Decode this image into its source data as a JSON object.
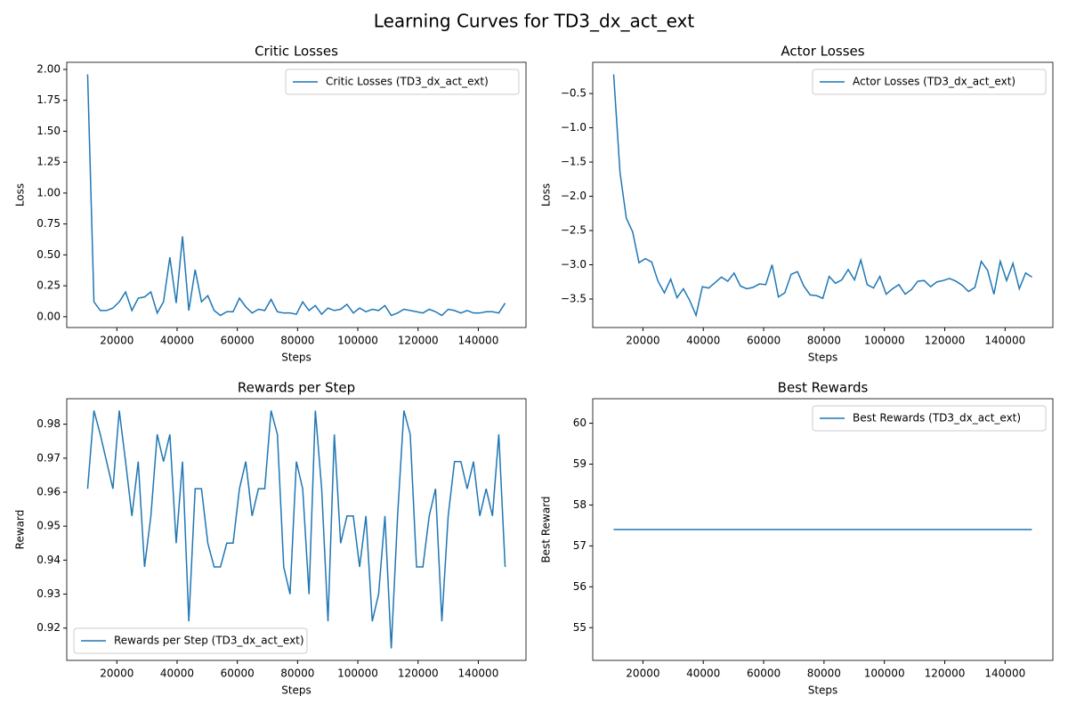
{
  "title": "Learning Curves for TD3_dx_act_ext",
  "chart_data": [
    {
      "type": "line",
      "title": "Critic Losses",
      "x_label": "Steps",
      "y_label": "Loss",
      "legend": "upper right",
      "x": [
        10300,
        12400,
        14500,
        16600,
        18700,
        20800,
        22900,
        25000,
        27100,
        29200,
        31300,
        33400,
        35500,
        37600,
        39700,
        41800,
        43900,
        46000,
        48100,
        50200,
        52300,
        54400,
        56500,
        58600,
        60700,
        62800,
        64900,
        67000,
        69100,
        71200,
        73300,
        75400,
        77500,
        79600,
        81700,
        83800,
        85900,
        88000,
        90100,
        92200,
        94300,
        96400,
        98500,
        100600,
        102700,
        104800,
        106900,
        109000,
        111100,
        113200,
        115300,
        117400,
        119500,
        121600,
        123700,
        125800,
        127900,
        130000,
        132100,
        134200,
        136300,
        138400,
        140500,
        142600,
        144700,
        146800,
        148900
      ],
      "series": [
        {
          "name": "Critic Losses (TD3_dx_act_ext)",
          "color": "#1f77b4",
          "values": [
            1.96,
            0.12,
            0.05,
            0.05,
            0.07,
            0.12,
            0.2,
            0.05,
            0.15,
            0.16,
            0.2,
            0.03,
            0.12,
            0.48,
            0.11,
            0.65,
            0.05,
            0.38,
            0.12,
            0.17,
            0.05,
            0.01,
            0.04,
            0.04,
            0.15,
            0.08,
            0.03,
            0.06,
            0.05,
            0.14,
            0.04,
            0.03,
            0.03,
            0.02,
            0.12,
            0.05,
            0.09,
            0.02,
            0.07,
            0.05,
            0.06,
            0.1,
            0.03,
            0.07,
            0.04,
            0.06,
            0.05,
            0.09,
            0.01,
            0.03,
            0.06,
            0.05,
            0.04,
            0.03,
            0.06,
            0.04,
            0.01,
            0.06,
            0.05,
            0.03,
            0.05,
            0.03,
            0.03,
            0.04,
            0.04,
            0.03,
            0.11
          ]
        }
      ],
      "xlim": [
        3370,
        155830
      ],
      "xticks": [
        20000,
        40000,
        60000,
        80000,
        100000,
        120000,
        140000
      ],
      "ylim": [
        -0.0875,
        2.0575
      ],
      "yticks": [
        {
          "value": 0,
          "label": "0.00"
        },
        {
          "value": 0.25,
          "label": "0.25"
        },
        {
          "value": 0.5,
          "label": "0.50"
        },
        {
          "value": 0.75,
          "label": "0.75"
        },
        {
          "value": 1,
          "label": "1.00"
        },
        {
          "value": 1.25,
          "label": "1.25"
        },
        {
          "value": 1.5,
          "label": "1.50"
        },
        {
          "value": 1.75,
          "label": "1.75"
        },
        {
          "value": 2,
          "label": "2.00"
        }
      ]
    },
    {
      "type": "line",
      "title": "Actor Losses",
      "x_label": "Steps",
      "y_label": "Loss",
      "legend": "upper right",
      "x": [
        10300,
        12400,
        14500,
        16600,
        18700,
        20800,
        22900,
        25000,
        27100,
        29200,
        31300,
        33400,
        35500,
        37600,
        39700,
        41800,
        43900,
        46000,
        48100,
        50200,
        52300,
        54400,
        56500,
        58600,
        60700,
        62800,
        64900,
        67000,
        69100,
        71200,
        73300,
        75400,
        77500,
        79600,
        81700,
        83800,
        85900,
        88000,
        90100,
        92200,
        94300,
        96400,
        98500,
        100600,
        102700,
        104800,
        106900,
        109000,
        111100,
        113200,
        115300,
        117400,
        119500,
        121600,
        123700,
        125800,
        127900,
        130000,
        132100,
        134200,
        136300,
        138400,
        140500,
        142600,
        144700,
        146800,
        148900
      ],
      "series": [
        {
          "name": "Actor Losses (TD3_dx_act_ext)",
          "color": "#1f77b4",
          "values": [
            -0.22,
            -1.65,
            -2.32,
            -2.52,
            -2.97,
            -2.91,
            -2.96,
            -3.24,
            -3.41,
            -3.21,
            -3.48,
            -3.35,
            -3.52,
            -3.74,
            -3.32,
            -3.34,
            -3.26,
            -3.18,
            -3.24,
            -3.12,
            -3.31,
            -3.35,
            -3.33,
            -3.28,
            -3.29,
            -3.0,
            -3.47,
            -3.41,
            -3.14,
            -3.1,
            -3.31,
            -3.44,
            -3.45,
            -3.49,
            -3.17,
            -3.27,
            -3.22,
            -3.07,
            -3.22,
            -2.93,
            -3.29,
            -3.34,
            -3.17,
            -3.43,
            -3.35,
            -3.29,
            -3.43,
            -3.36,
            -3.24,
            -3.23,
            -3.32,
            -3.25,
            -3.23,
            -3.2,
            -3.24,
            -3.3,
            -3.39,
            -3.33,
            -2.95,
            -3.08,
            -3.43,
            -2.95,
            -3.23,
            -2.98,
            -3.35,
            -3.12,
            -3.18
          ]
        }
      ],
      "xlim": [
        3370,
        155830
      ],
      "xticks": [
        20000,
        40000,
        60000,
        80000,
        100000,
        120000,
        140000
      ],
      "ylim": [
        -3.916,
        -0.044
      ],
      "yticks": [
        {
          "value": -3.5,
          "label": "−3.5"
        },
        {
          "value": -3,
          "label": "−3.0"
        },
        {
          "value": -2.5,
          "label": "−2.5"
        },
        {
          "value": -2,
          "label": "−2.0"
        },
        {
          "value": -1.5,
          "label": "−1.5"
        },
        {
          "value": -1,
          "label": "−1.0"
        },
        {
          "value": -0.5,
          "label": "−0.5"
        }
      ]
    },
    {
      "type": "line",
      "title": "Rewards per Step",
      "x_label": "Steps",
      "y_label": "Reward",
      "legend": "lower left",
      "x": [
        10300,
        12400,
        14500,
        16600,
        18700,
        20800,
        22900,
        25000,
        27100,
        29200,
        31300,
        33400,
        35500,
        37600,
        39700,
        41800,
        43900,
        46000,
        48100,
        50200,
        52300,
        54400,
        56500,
        58600,
        60700,
        62800,
        64900,
        67000,
        69100,
        71200,
        73300,
        75400,
        77500,
        79600,
        81700,
        83800,
        85900,
        88000,
        90100,
        92200,
        94300,
        96400,
        98500,
        100600,
        102700,
        104800,
        106900,
        109000,
        111100,
        113200,
        115300,
        117400,
        119500,
        121600,
        123700,
        125800,
        127900,
        130000,
        132100,
        134200,
        136300,
        138400,
        140500,
        142600,
        144700,
        146800,
        148900
      ],
      "series": [
        {
          "name": "Rewards per Step (TD3_dx_act_ext)",
          "color": "#1f77b4",
          "values": [
            0.961,
            0.984,
            0.977,
            0.969,
            0.961,
            0.984,
            0.969,
            0.953,
            0.969,
            0.938,
            0.953,
            0.977,
            0.969,
            0.977,
            0.945,
            0.969,
            0.922,
            0.961,
            0.961,
            0.945,
            0.938,
            0.938,
            0.945,
            0.945,
            0.961,
            0.969,
            0.953,
            0.961,
            0.961,
            0.984,
            0.977,
            0.938,
            0.93,
            0.969,
            0.961,
            0.93,
            0.984,
            0.961,
            0.922,
            0.977,
            0.945,
            0.953,
            0.953,
            0.938,
            0.953,
            0.922,
            0.93,
            0.953,
            0.914,
            0.953,
            0.984,
            0.977,
            0.938,
            0.938,
            0.953,
            0.961,
            0.922,
            0.953,
            0.969,
            0.969,
            0.961,
            0.969,
            0.953,
            0.961,
            0.953,
            0.977,
            0.938
          ]
        }
      ],
      "xlim": [
        3370,
        155830
      ],
      "xticks": [
        20000,
        40000,
        60000,
        80000,
        100000,
        120000,
        140000
      ],
      "ylim": [
        0.9105,
        0.9875
      ],
      "yticks": [
        0.92,
        0.93,
        0.94,
        0.95,
        0.96,
        0.97,
        0.98
      ]
    },
    {
      "type": "line",
      "title": "Best Rewards",
      "x_label": "Steps",
      "y_label": "Best Reward",
      "legend": "upper right",
      "x": [
        10300,
        12400,
        14500,
        16600,
        18700,
        20800,
        22900,
        25000,
        27100,
        29200,
        31300,
        33400,
        35500,
        37600,
        39700,
        41800,
        43900,
        46000,
        48100,
        50200,
        52300,
        54400,
        56500,
        58600,
        60700,
        62800,
        64900,
        67000,
        69100,
        71200,
        73300,
        75400,
        77500,
        79600,
        81700,
        83800,
        85900,
        88000,
        90100,
        92200,
        94300,
        96400,
        98500,
        100600,
        102700,
        104800,
        106900,
        109000,
        111100,
        113200,
        115300,
        117400,
        119500,
        121600,
        123700,
        125800,
        127900,
        130000,
        132100,
        134200,
        136300,
        138400,
        140500,
        142600,
        144700,
        146800,
        148900
      ],
      "series": [
        {
          "name": "Best Rewards (TD3_dx_act_ext)",
          "color": "#1f77b4",
          "values": [
            57.4,
            57.4,
            57.4,
            57.4,
            57.4,
            57.4,
            57.4,
            57.4,
            57.4,
            57.4,
            57.4,
            57.4,
            57.4,
            57.4,
            57.4,
            57.4,
            57.4,
            57.4,
            57.4,
            57.4,
            57.4,
            57.4,
            57.4,
            57.4,
            57.4,
            57.4,
            57.4,
            57.4,
            57.4,
            57.4,
            57.4,
            57.4,
            57.4,
            57.4,
            57.4,
            57.4,
            57.4,
            57.4,
            57.4,
            57.4,
            57.4,
            57.4,
            57.4,
            57.4,
            57.4,
            57.4,
            57.4,
            57.4,
            57.4,
            57.4,
            57.4,
            57.4,
            57.4,
            57.4,
            57.4,
            57.4,
            57.4,
            57.4,
            57.4,
            57.4,
            57.4,
            57.4,
            57.4,
            57.4,
            57.4,
            57.4,
            57.4
          ]
        }
      ],
      "xlim": [
        3370,
        155830
      ],
      "xticks": [
        20000,
        40000,
        60000,
        80000,
        100000,
        120000,
        140000
      ],
      "ylim": [
        54.2,
        60.6
      ],
      "yticks": [
        55,
        56,
        57,
        58,
        59,
        60
      ]
    }
  ]
}
